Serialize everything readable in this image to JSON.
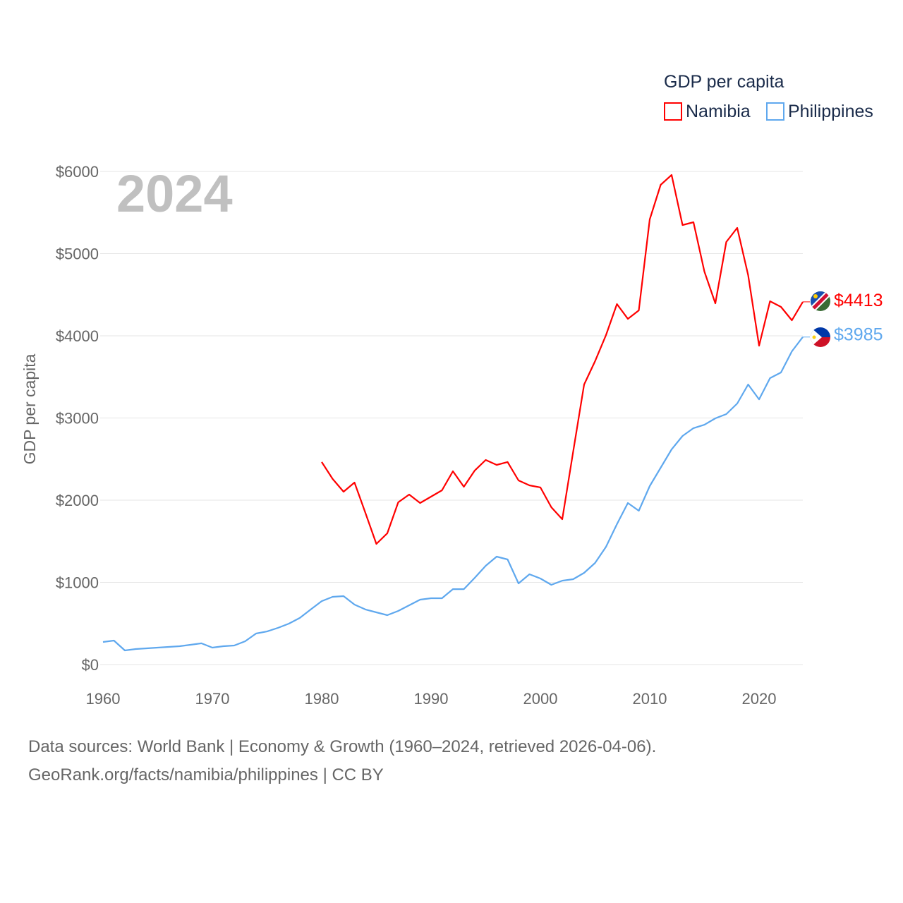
{
  "chart_data": {
    "type": "line",
    "title": "GDP per capita",
    "year_label": "2024",
    "xlabel": "",
    "ylabel": "GDP per capita",
    "xlim": [
      1960,
      2024
    ],
    "ylim": [
      0,
      6000
    ],
    "x_ticks": [
      1960,
      1970,
      1980,
      1990,
      2000,
      2010,
      2020
    ],
    "x_tick_labels": [
      "1960",
      "1970",
      "1980",
      "1990",
      "2000",
      "2010",
      "2020"
    ],
    "y_ticks": [
      0,
      1000,
      2000,
      3000,
      4000,
      5000,
      6000
    ],
    "y_tick_labels": [
      "$0",
      "$1000",
      "$2000",
      "$3000",
      "$4000",
      "$5000",
      "$6000"
    ],
    "grid": true,
    "legend_position": "top-right",
    "series": [
      {
        "name": "Namibia",
        "color": "#ff0000",
        "end_label": "$4413",
        "start_year": 1980,
        "values": [
          2464,
          2258,
          2103,
          2215,
          1845,
          1468,
          1597,
          1974,
          2069,
          1966,
          2043,
          2120,
          2352,
          2163,
          2361,
          2489,
          2429,
          2464,
          2240,
          2180,
          2155,
          1914,
          1768,
          2592,
          3408,
          3691,
          4009,
          4386,
          4206,
          4309,
          5416,
          5837,
          5957,
          5348,
          5382,
          4781,
          4395,
          5142,
          5313,
          4738,
          3880,
          4421,
          4352,
          4189,
          4413
        ]
      },
      {
        "name": "Philippines",
        "color": "#5fa8ee",
        "end_label": "$3985",
        "start_year": 1960,
        "values": [
          275,
          292,
          172,
          189,
          197,
          206,
          215,
          223,
          240,
          258,
          206,
          223,
          232,
          283,
          378,
          403,
          446,
          498,
          567,
          670,
          772,
          824,
          833,
          730,
          670,
          635,
          601,
          652,
          721,
          790,
          807,
          807,
          918,
          918,
          1056,
          1202,
          1313,
          1279,
          987,
          1099,
          1047,
          970,
          1021,
          1039,
          1116,
          1236,
          1433,
          1708,
          1966,
          1871,
          2172,
          2395,
          2618,
          2781,
          2876,
          2918,
          2996,
          3047,
          3176,
          3408,
          3227,
          3485,
          3554,
          3811,
          3985
        ]
      }
    ]
  },
  "footer": {
    "line1": "Data sources: World Bank | Economy & Growth (1960–2024, retrieved 2026-04-06).",
    "line2": "GeoRank.org/facts/namibia/philippines | CC BY"
  }
}
